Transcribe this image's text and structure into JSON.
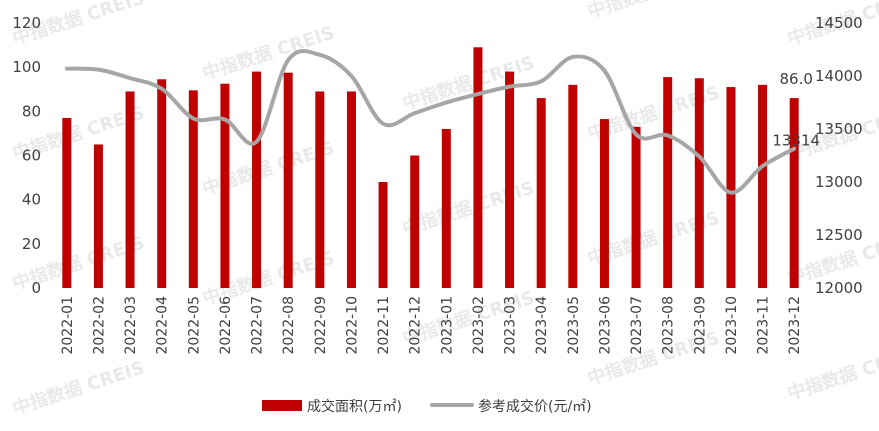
{
  "watermark": "中指数据 CREIS",
  "chart_data": {
    "type": "bar+line",
    "categories": [
      "2022-01",
      "2022-02",
      "2022-03",
      "2022-04",
      "2022-05",
      "2022-06",
      "2022-07",
      "2022-08",
      "2022-09",
      "2022-10",
      "2022-11",
      "2022-12",
      "2023-01",
      "2023-02",
      "2023-03",
      "2023-04",
      "2023-05",
      "2023-06",
      "2023-07",
      "2023-08",
      "2023-09",
      "2023-10",
      "2023-11",
      "2023-12"
    ],
    "series": [
      {
        "name": "成交面积(万㎡)",
        "type": "bar",
        "axis": "left",
        "color": "#c00000",
        "values": [
          77,
          65,
          89,
          94.5,
          89.5,
          92.5,
          98,
          97.5,
          89,
          89,
          48,
          60,
          72,
          109,
          98,
          86,
          92,
          76.5,
          73,
          95.5,
          95,
          91,
          92,
          86.0
        ]
      },
      {
        "name": "参考成交价(元/㎡)",
        "type": "line",
        "axis": "right",
        "color": "#a6a6a6",
        "values": [
          14070,
          14060,
          13980,
          13880,
          13600,
          13590,
          13380,
          14150,
          14200,
          14000,
          13550,
          13650,
          13750,
          13830,
          13900,
          13950,
          14180,
          14050,
          13450,
          13440,
          13240,
          12900,
          13150,
          13314
        ]
      }
    ],
    "left_axis": {
      "ylim": [
        0,
        120
      ],
      "ticks": [
        "0",
        "20",
        "40",
        "60",
        "80",
        "100",
        "120"
      ]
    },
    "right_axis": {
      "ylim": [
        12000,
        14500
      ],
      "ticks": [
        "12000",
        "12500",
        "13000",
        "13500",
        "14000",
        "14500"
      ]
    },
    "data_labels": {
      "bar_last": "86.0",
      "line_last": "13314"
    },
    "legend": {
      "position": "bottom"
    },
    "grid": false
  }
}
